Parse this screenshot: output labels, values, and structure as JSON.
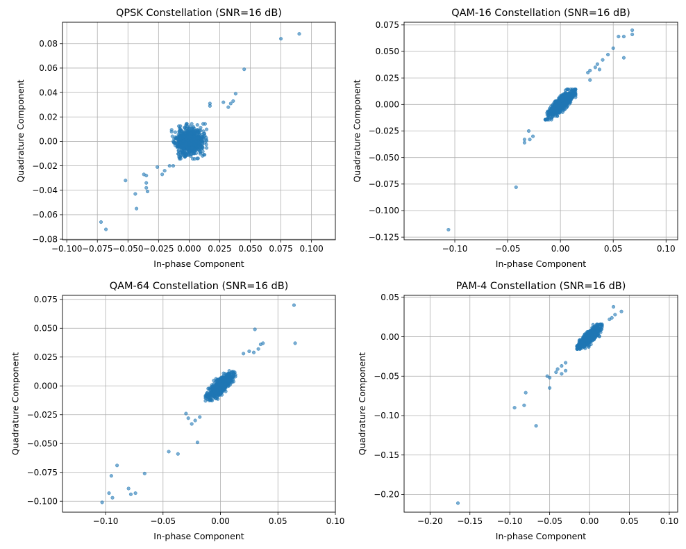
{
  "figure": {
    "marker_color": "#1f77b4",
    "marker_alpha": 0.6,
    "grid_color": "#b0b0b0"
  },
  "chart_data": [
    {
      "type": "scatter",
      "title": "QPSK Constellation (SNR=16 dB)",
      "xlabel": "In-phase Component",
      "ylabel": "Quadrature Component",
      "xlim": [
        -0.1035,
        0.1195
      ],
      "ylim": [
        -0.0805,
        0.0975
      ],
      "xticks": [
        -0.1,
        -0.075,
        -0.05,
        -0.025,
        0.0,
        0.025,
        0.05,
        0.075,
        0.1
      ],
      "xticklabels": [
        "−0.100",
        "−0.075",
        "−0.050",
        "−0.025",
        "0.000",
        "0.025",
        "0.050",
        "0.075",
        "0.100"
      ],
      "yticks": [
        -0.08,
        -0.06,
        -0.04,
        -0.02,
        0.0,
        0.02,
        0.04,
        0.06,
        0.08
      ],
      "yticklabels": [
        "−0.08",
        "−0.06",
        "−0.04",
        "−0.02",
        "0.00",
        "0.02",
        "0.04",
        "0.06",
        "0.08"
      ],
      "grid": true,
      "cluster": {
        "center": [
          0.0,
          0.0
        ],
        "spread": [
          0.011,
          0.011
        ],
        "count": 700,
        "seed": 11
      },
      "outliers": [
        [
          0.09,
          0.088
        ],
        [
          0.075,
          0.084
        ],
        [
          0.045,
          0.059
        ],
        [
          0.038,
          0.039
        ],
        [
          0.036,
          0.033
        ],
        [
          0.034,
          0.031
        ],
        [
          0.032,
          0.028
        ],
        [
          0.028,
          0.032
        ],
        [
          0.017,
          0.031
        ],
        [
          0.017,
          0.029
        ],
        [
          -0.072,
          -0.066
        ],
        [
          -0.068,
          -0.072
        ],
        [
          -0.052,
          -0.032
        ],
        [
          -0.044,
          -0.043
        ],
        [
          -0.043,
          -0.055
        ],
        [
          -0.037,
          -0.027
        ],
        [
          -0.035,
          -0.028
        ],
        [
          -0.035,
          -0.034
        ],
        [
          -0.035,
          -0.038
        ],
        [
          -0.034,
          -0.041
        ],
        [
          -0.026,
          -0.021
        ],
        [
          -0.022,
          -0.027
        ],
        [
          -0.02,
          -0.024
        ],
        [
          -0.016,
          -0.02
        ],
        [
          -0.013,
          -0.02
        ]
      ]
    },
    {
      "type": "scatter",
      "title": "QAM-16 Constellation (SNR=16 dB)",
      "xlabel": "In-phase Component",
      "ylabel": "Quadrature Component",
      "xlim": [
        -0.148,
        0.111
      ],
      "ylim": [
        -0.1275,
        0.0775
      ],
      "xticks": [
        -0.1,
        -0.05,
        0.0,
        0.05,
        0.1
      ],
      "xticklabels": [
        "−0.10",
        "−0.05",
        "0.00",
        "0.05",
        "0.10"
      ],
      "yticks": [
        -0.125,
        -0.1,
        -0.075,
        -0.05,
        -0.025,
        0.0,
        0.025,
        0.05,
        0.075
      ],
      "yticklabels": [
        "−0.125",
        "−0.100",
        "−0.075",
        "−0.050",
        "−0.025",
        "0.000",
        "0.025",
        "0.050",
        "0.075"
      ],
      "grid": true,
      "cluster": {
        "center": [
          0.0,
          0.0
        ],
        "spread": [
          0.011,
          0.011
        ],
        "correlation": 0.82,
        "count": 750,
        "seed": 23
      },
      "outliers": [
        [
          0.068,
          0.07
        ],
        [
          0.068,
          0.066
        ],
        [
          0.06,
          0.064
        ],
        [
          0.055,
          0.064
        ],
        [
          0.05,
          0.053
        ],
        [
          0.06,
          0.044
        ],
        [
          0.045,
          0.047
        ],
        [
          0.04,
          0.042
        ],
        [
          0.037,
          0.033
        ],
        [
          0.035,
          0.038
        ],
        [
          0.033,
          0.035
        ],
        [
          0.028,
          0.032
        ],
        [
          0.026,
          0.03
        ],
        [
          0.028,
          0.023
        ],
        [
          -0.034,
          -0.033
        ],
        [
          -0.034,
          -0.036
        ],
        [
          -0.029,
          -0.033
        ],
        [
          -0.026,
          -0.03
        ],
        [
          -0.03,
          -0.025
        ],
        [
          -0.042,
          -0.078
        ],
        [
          -0.106,
          -0.118
        ]
      ]
    },
    {
      "type": "scatter",
      "title": "QAM-64 Constellation (SNR=16 dB)",
      "xlabel": "In-phase Component",
      "ylabel": "Quadrature Component",
      "xlim": [
        -0.1375,
        0.1
      ],
      "ylim": [
        -0.1095,
        0.0785
      ],
      "xticks": [
        -0.1,
        -0.05,
        0.0,
        0.05,
        0.1
      ],
      "xticklabels": [
        "−0.10",
        "−0.05",
        "0.00",
        "0.05",
        "0.10"
      ],
      "yticks": [
        -0.1,
        -0.075,
        -0.05,
        -0.025,
        0.0,
        0.025,
        0.05,
        0.075
      ],
      "yticklabels": [
        "−0.100",
        "−0.075",
        "−0.050",
        "−0.025",
        "0.000",
        "0.025",
        "0.050",
        "0.075"
      ],
      "grid": true,
      "cluster": {
        "center": [
          0.0,
          0.0
        ],
        "spread": [
          0.01,
          0.01
        ],
        "correlation": 0.8,
        "count": 750,
        "seed": 37
      },
      "outliers": [
        [
          0.064,
          0.07
        ],
        [
          0.065,
          0.037
        ],
        [
          0.03,
          0.049
        ],
        [
          0.037,
          0.037
        ],
        [
          0.035,
          0.036
        ],
        [
          0.033,
          0.032
        ],
        [
          0.029,
          0.029
        ],
        [
          0.025,
          0.03
        ],
        [
          0.02,
          0.028
        ],
        [
          -0.03,
          -0.024
        ],
        [
          -0.028,
          -0.028
        ],
        [
          -0.025,
          -0.033
        ],
        [
          -0.022,
          -0.03
        ],
        [
          -0.018,
          -0.027
        ],
        [
          -0.02,
          -0.049
        ],
        [
          -0.045,
          -0.057
        ],
        [
          -0.037,
          -0.059
        ],
        [
          -0.066,
          -0.076
        ],
        [
          -0.09,
          -0.069
        ],
        [
          -0.095,
          -0.078
        ],
        [
          -0.08,
          -0.089
        ],
        [
          -0.078,
          -0.094
        ],
        [
          -0.074,
          -0.093
        ],
        [
          -0.094,
          -0.097
        ],
        [
          -0.097,
          -0.093
        ],
        [
          -0.103,
          -0.101
        ]
      ]
    },
    {
      "type": "scatter",
      "title": "PAM-4 Constellation (SNR=16 dB)",
      "xlabel": "In-phase Component",
      "ylabel": "Quadrature Component",
      "xlim": [
        -0.2325,
        0.1105
      ],
      "ylim": [
        -0.2225,
        0.0525
      ],
      "xticks": [
        -0.2,
        -0.15,
        -0.1,
        -0.05,
        0.0,
        0.05,
        0.1
      ],
      "xticklabels": [
        "−0.20",
        "−0.15",
        "−0.10",
        "−0.05",
        "0.00",
        "0.05",
        "0.10"
      ],
      "yticks": [
        -0.2,
        -0.15,
        -0.1,
        -0.05,
        0.0,
        0.05
      ],
      "yticklabels": [
        "−0.20",
        "−0.15",
        "−0.10",
        "−0.05",
        "0.00",
        "0.05"
      ],
      "grid": true,
      "cluster": {
        "center": [
          0.0,
          0.0
        ],
        "spread": [
          0.012,
          0.012
        ],
        "correlation": 0.8,
        "count": 750,
        "seed": 53
      },
      "outliers": [
        [
          0.03,
          0.038
        ],
        [
          0.04,
          0.032
        ],
        [
          0.032,
          0.028
        ],
        [
          0.028,
          0.024
        ],
        [
          0.025,
          0.022
        ],
        [
          -0.03,
          -0.033
        ],
        [
          -0.035,
          -0.037
        ],
        [
          -0.03,
          -0.043
        ],
        [
          -0.04,
          -0.041
        ],
        [
          -0.042,
          -0.045
        ],
        [
          -0.035,
          -0.047
        ],
        [
          -0.053,
          -0.05
        ],
        [
          -0.05,
          -0.052
        ],
        [
          -0.05,
          -0.065
        ],
        [
          -0.08,
          -0.071
        ],
        [
          -0.082,
          -0.087
        ],
        [
          -0.094,
          -0.09
        ],
        [
          -0.067,
          -0.113
        ],
        [
          -0.165,
          -0.211
        ]
      ]
    }
  ]
}
